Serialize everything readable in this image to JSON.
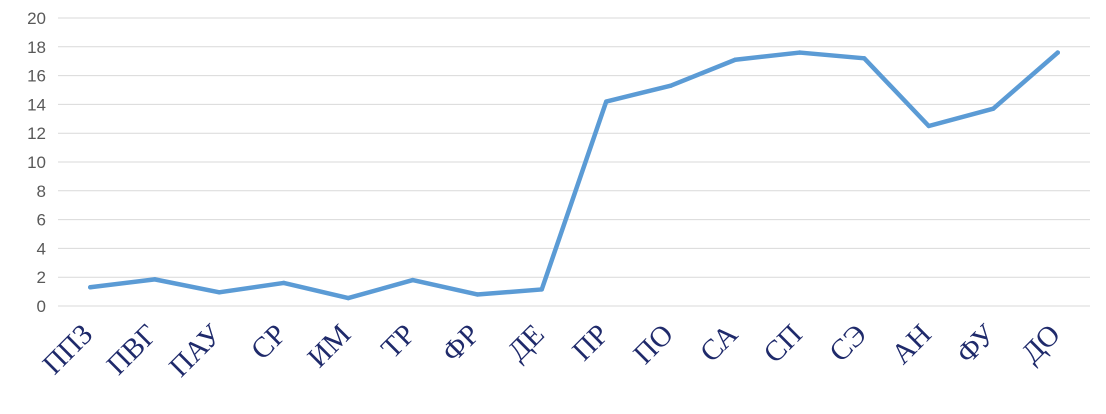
{
  "chart_data": {
    "type": "line",
    "categories": [
      "ППЗ",
      "ПВГ",
      "ПАУ",
      "СР",
      "ИМ",
      "ТР",
      "ФР",
      "ДЕ",
      "ПР",
      "ПО",
      "СА",
      "СП",
      "СЭ",
      "АН",
      "ФУ",
      "ДО"
    ],
    "series": [
      {
        "values": [
          1.3,
          1.85,
          0.95,
          1.6,
          0.55,
          1.8,
          0.8,
          1.15,
          14.2,
          15.3,
          17.1,
          17.6,
          17.2,
          12.5,
          13.7,
          17.6
        ]
      }
    ],
    "title": "",
    "xlabel": "",
    "ylabel": "",
    "ylim": [
      0,
      20
    ],
    "yticks": [
      "0",
      "2",
      "4",
      "6",
      "8",
      "10",
      "12",
      "14",
      "16",
      "18",
      "20"
    ],
    "grid": true,
    "legend": "none",
    "colors": {
      "line": "#5b9bd5",
      "grid": "#d9d9d9",
      "ytick_text": "#595959",
      "xtick_text": "#1f2a6b"
    }
  }
}
